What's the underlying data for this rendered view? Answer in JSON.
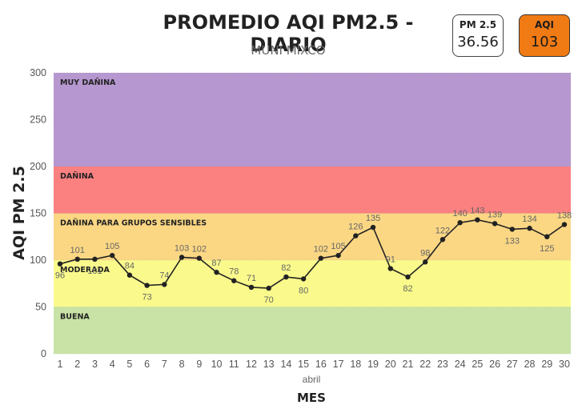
{
  "header": {
    "title": "PROMEDIO AQI PM2.5 - DIARIO",
    "subtitle": "MUNI MIXCO"
  },
  "cards": {
    "pm25": {
      "label": "PM 2.5",
      "value": "36.56"
    },
    "aqi": {
      "label": "AQI",
      "value": "103",
      "color": "#f07a14"
    }
  },
  "chart_data": {
    "type": "line",
    "ylabel": "AQI PM 2.5",
    "xlabel": "MES",
    "x_sublabel": "abril",
    "ylim": [
      0,
      300
    ],
    "yticks": [
      "0",
      "50",
      "100",
      "150",
      "200",
      "250",
      "300"
    ],
    "x": [
      "1",
      "2",
      "3",
      "4",
      "5",
      "6",
      "7",
      "8",
      "9",
      "10",
      "11",
      "12",
      "13",
      "14",
      "15",
      "16",
      "17",
      "18",
      "19",
      "20",
      "21",
      "22",
      "23",
      "24",
      "25",
      "26",
      "27",
      "28",
      "29",
      "30"
    ],
    "values": [
      96,
      101,
      101,
      105,
      84,
      73,
      74,
      103,
      102,
      87,
      78,
      71,
      70,
      82,
      80,
      102,
      105,
      126,
      135,
      91,
      82,
      98,
      122,
      140,
      143,
      139,
      133,
      134,
      125,
      138
    ],
    "point_labels": [
      "96",
      "101",
      "101",
      "105",
      "84",
      "73",
      "74",
      "103",
      "102",
      "87",
      "78",
      "71",
      "70",
      "82",
      "80",
      "102",
      "105",
      "126",
      "135",
      "91",
      "82",
      "98",
      "122",
      "140",
      "143",
      "139",
      "133",
      "134",
      "125",
      "138"
    ],
    "line_color": "#222222",
    "bands": [
      {
        "label": "BUENA",
        "from": 0,
        "to": 50,
        "color": "#c9e3a6"
      },
      {
        "label": "MODERADA",
        "from": 50,
        "to": 100,
        "color": "#fafa8c"
      },
      {
        "label": "DAÑINA PARA GRUPOS SENSIBLES",
        "from": 100,
        "to": 150,
        "color": "#fbd784"
      },
      {
        "label": "DAÑINA",
        "from": 150,
        "to": 200,
        "color": "#fb8080"
      },
      {
        "label": "MUY DAÑINA",
        "from": 200,
        "to": 300,
        "color": "#b697cf"
      }
    ]
  }
}
